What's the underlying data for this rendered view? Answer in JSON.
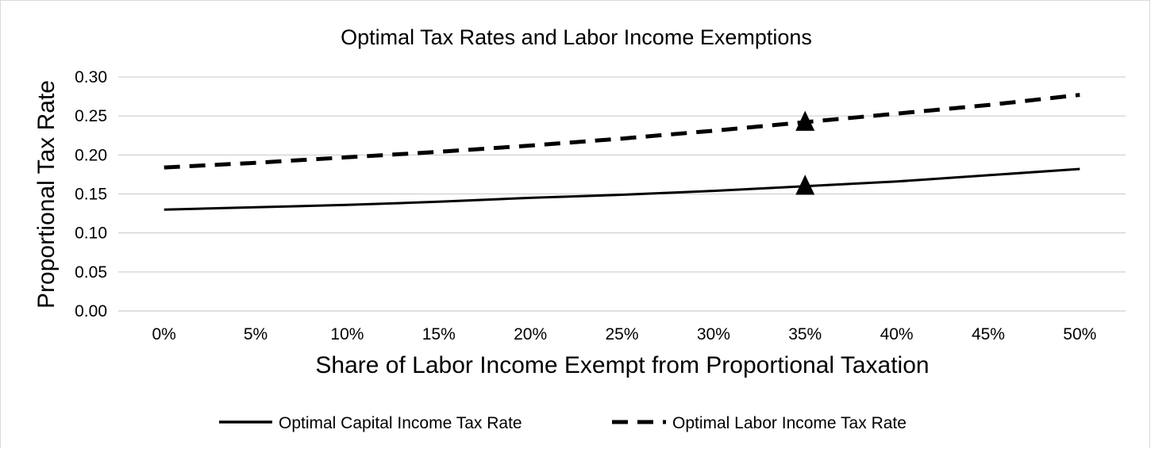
{
  "chart_data": {
    "type": "line",
    "title": "Optimal Tax Rates and Labor Income Exemptions",
    "xlabel": "Share of Labor Income Exempt from Proportional Taxation",
    "ylabel": "Proportional Tax Rate",
    "categories": [
      "0%",
      "5%",
      "10%",
      "15%",
      "20%",
      "25%",
      "30%",
      "35%",
      "40%",
      "45%",
      "50%"
    ],
    "ylim": [
      0,
      0.3
    ],
    "yticks": [
      "0.00",
      "0.05",
      "0.10",
      "0.15",
      "0.20",
      "0.25",
      "0.30"
    ],
    "grid": true,
    "legend_position": "bottom",
    "series": [
      {
        "name": "Optimal Capital Income Tax Rate",
        "style": "solid",
        "color": "#000000",
        "values": [
          0.13,
          0.133,
          0.136,
          0.14,
          0.145,
          0.149,
          0.154,
          0.16,
          0.166,
          0.174,
          0.182
        ],
        "markers": [
          {
            "category": "35%",
            "value": 0.16,
            "shape": "triangle"
          }
        ]
      },
      {
        "name": "Optimal Labor Income Tax Rate",
        "style": "dashed",
        "color": "#000000",
        "values": [
          0.184,
          0.19,
          0.197,
          0.204,
          0.212,
          0.221,
          0.231,
          0.242,
          0.253,
          0.264,
          0.277
        ],
        "markers": [
          {
            "category": "35%",
            "value": 0.242,
            "shape": "triangle"
          }
        ]
      }
    ]
  }
}
